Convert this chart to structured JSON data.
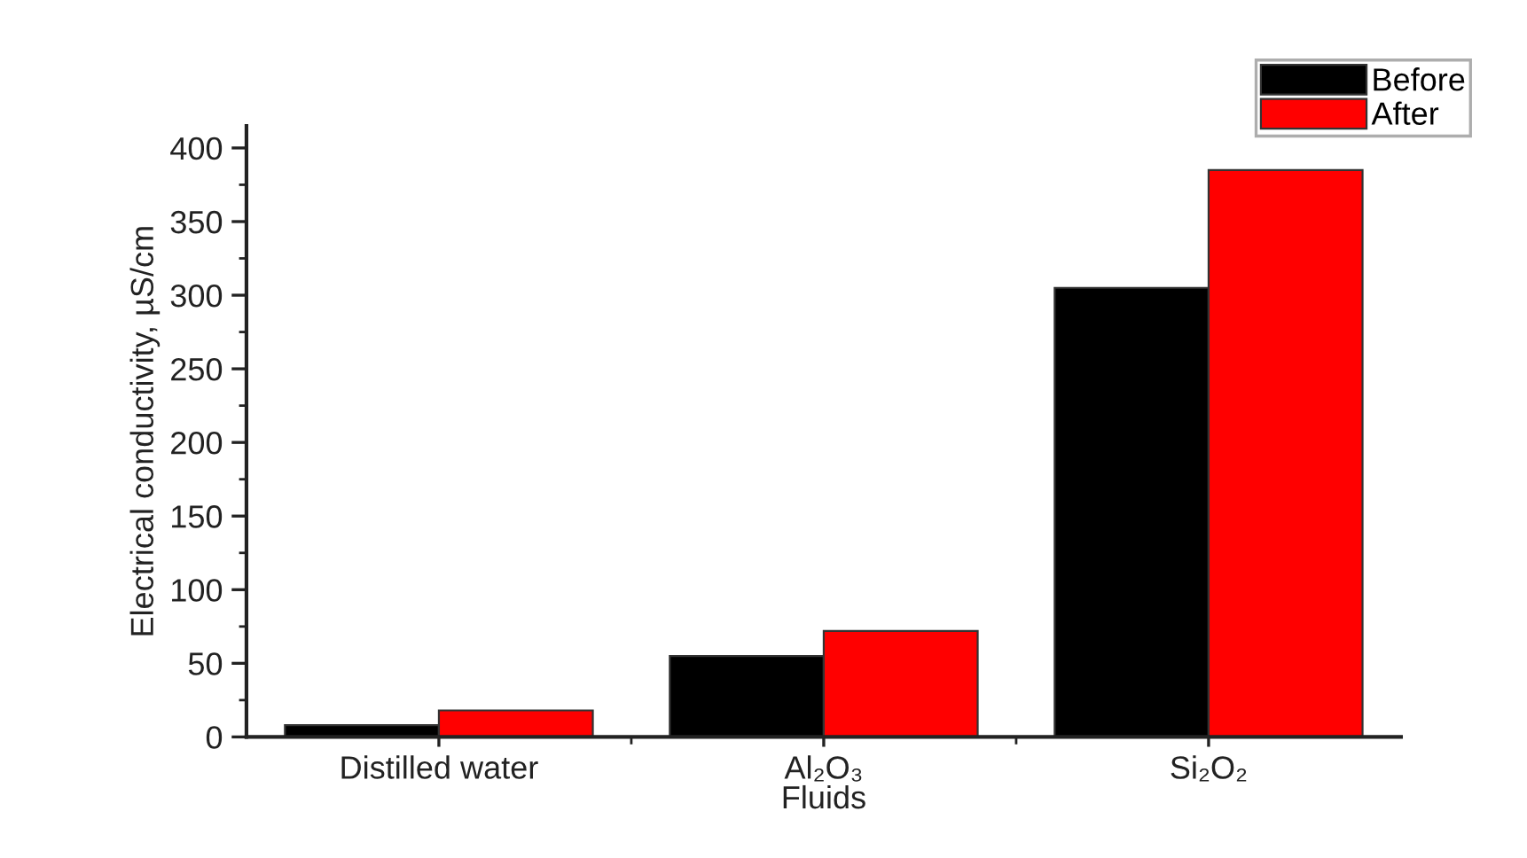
{
  "chart_data": {
    "type": "bar",
    "xlabel": "Fluids",
    "ylabel": "Electrical conductivity, µS/cm",
    "categories": [
      "Distilled water",
      "Al₂O₃",
      "Si₂O₂"
    ],
    "series": [
      {
        "name": "Before",
        "color": "#000000",
        "values": [
          8,
          55,
          305
        ]
      },
      {
        "name": "After",
        "color": "#ff0000",
        "values": [
          18,
          72,
          385
        ]
      }
    ],
    "ylim": [
      0,
      415
    ],
    "yticks": [
      0,
      {
        "value": 25,
        "label": null
      },
      50,
      {
        "value": 75,
        "label": null
      },
      100,
      {
        "value": 125,
        "label": null
      },
      150,
      {
        "value": 175,
        "label": null
      },
      200,
      {
        "value": 225,
        "label": null
      },
      250,
      {
        "value": 275,
        "label": null
      },
      300,
      {
        "value": 325,
        "label": null
      },
      350,
      {
        "value": 375,
        "label": null
      },
      400
    ],
    "legend": "top right",
    "grid": false
  }
}
